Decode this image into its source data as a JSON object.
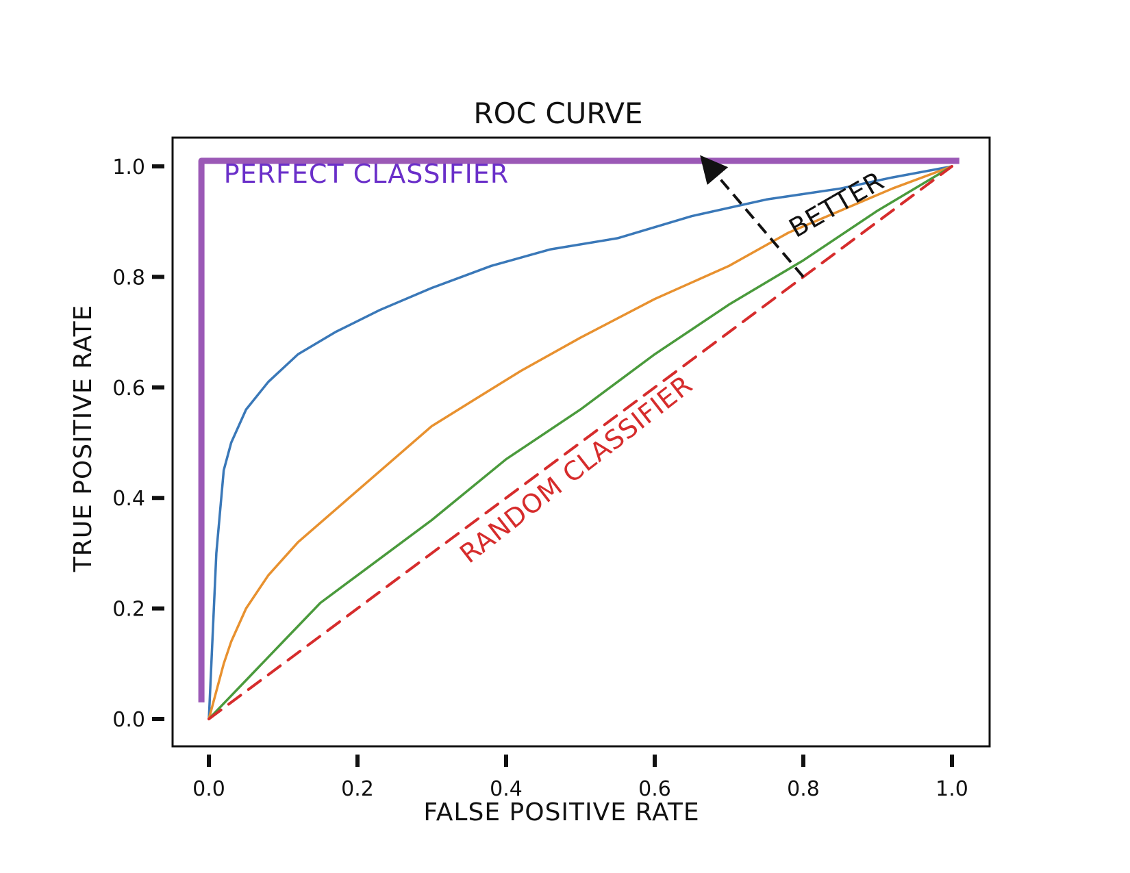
{
  "chart_data": {
    "type": "line",
    "title": "ROC CURVE",
    "xlabel": "FALSE POSITIVE RATE",
    "ylabel": "TRUE POSITIVE RATE",
    "xlim": [
      0.0,
      1.0
    ],
    "ylim": [
      0.0,
      1.0
    ],
    "xticks": [
      "0.0",
      "0.2",
      "0.4",
      "0.6",
      "0.8",
      "1.0"
    ],
    "yticks": [
      "0.0",
      "0.2",
      "0.4",
      "0.6",
      "0.8",
      "1.0"
    ],
    "grid": false,
    "series": [
      {
        "color": "#9b59b6",
        "style": "solid-thick",
        "x": [
          -0.01,
          -0.01,
          1.01
        ],
        "y": [
          0.03,
          1.01,
          1.01
        ]
      },
      {
        "color": "#3a78b8",
        "style": "solid",
        "x": [
          0.0,
          0.01,
          0.02,
          0.03,
          0.05,
          0.08,
          0.12,
          0.17,
          0.23,
          0.3,
          0.38,
          0.46,
          0.55,
          0.65,
          0.75,
          0.85,
          0.92,
          1.0
        ],
        "y": [
          0.0,
          0.3,
          0.45,
          0.5,
          0.56,
          0.61,
          0.66,
          0.7,
          0.74,
          0.78,
          0.82,
          0.85,
          0.87,
          0.91,
          0.94,
          0.96,
          0.98,
          1.0
        ]
      },
      {
        "color": "#e8912f",
        "style": "solid",
        "x": [
          0.0,
          0.02,
          0.03,
          0.05,
          0.08,
          0.12,
          0.18,
          0.24,
          0.3,
          0.36,
          0.42,
          0.5,
          0.6,
          0.7,
          0.78,
          0.85,
          0.92,
          1.0
        ],
        "y": [
          0.0,
          0.1,
          0.14,
          0.2,
          0.26,
          0.32,
          0.39,
          0.46,
          0.53,
          0.58,
          0.63,
          0.69,
          0.76,
          0.82,
          0.88,
          0.92,
          0.96,
          1.0
        ]
      },
      {
        "color": "#4a9a3c",
        "style": "solid",
        "x": [
          0.0,
          0.05,
          0.1,
          0.15,
          0.2,
          0.3,
          0.4,
          0.5,
          0.55,
          0.6,
          0.7,
          0.8,
          0.9,
          1.0
        ],
        "y": [
          0.0,
          0.07,
          0.14,
          0.21,
          0.26,
          0.36,
          0.47,
          0.56,
          0.61,
          0.66,
          0.75,
          0.83,
          0.92,
          1.0
        ]
      },
      {
        "color": "#d62c2c",
        "style": "dashed",
        "x": [
          0.0,
          1.0
        ],
        "y": [
          0.0,
          1.0
        ]
      }
    ],
    "annotations": [
      {
        "text": "PERFECT CLASSIFIER",
        "x": 0.02,
        "y": 0.97,
        "color": "#6a2fc9",
        "rotate": 0
      },
      {
        "text": "RANDOM CLASSIFIER",
        "x": 0.35,
        "y": 0.28,
        "color": "#d62c2c",
        "rotate": -38
      },
      {
        "text": "BETTER",
        "x": 0.79,
        "y": 0.87,
        "color": "#111111",
        "rotate": -30
      }
    ],
    "arrow": {
      "from": [
        0.8,
        0.8
      ],
      "to": [
        0.68,
        0.99
      ],
      "color": "#111111"
    }
  }
}
